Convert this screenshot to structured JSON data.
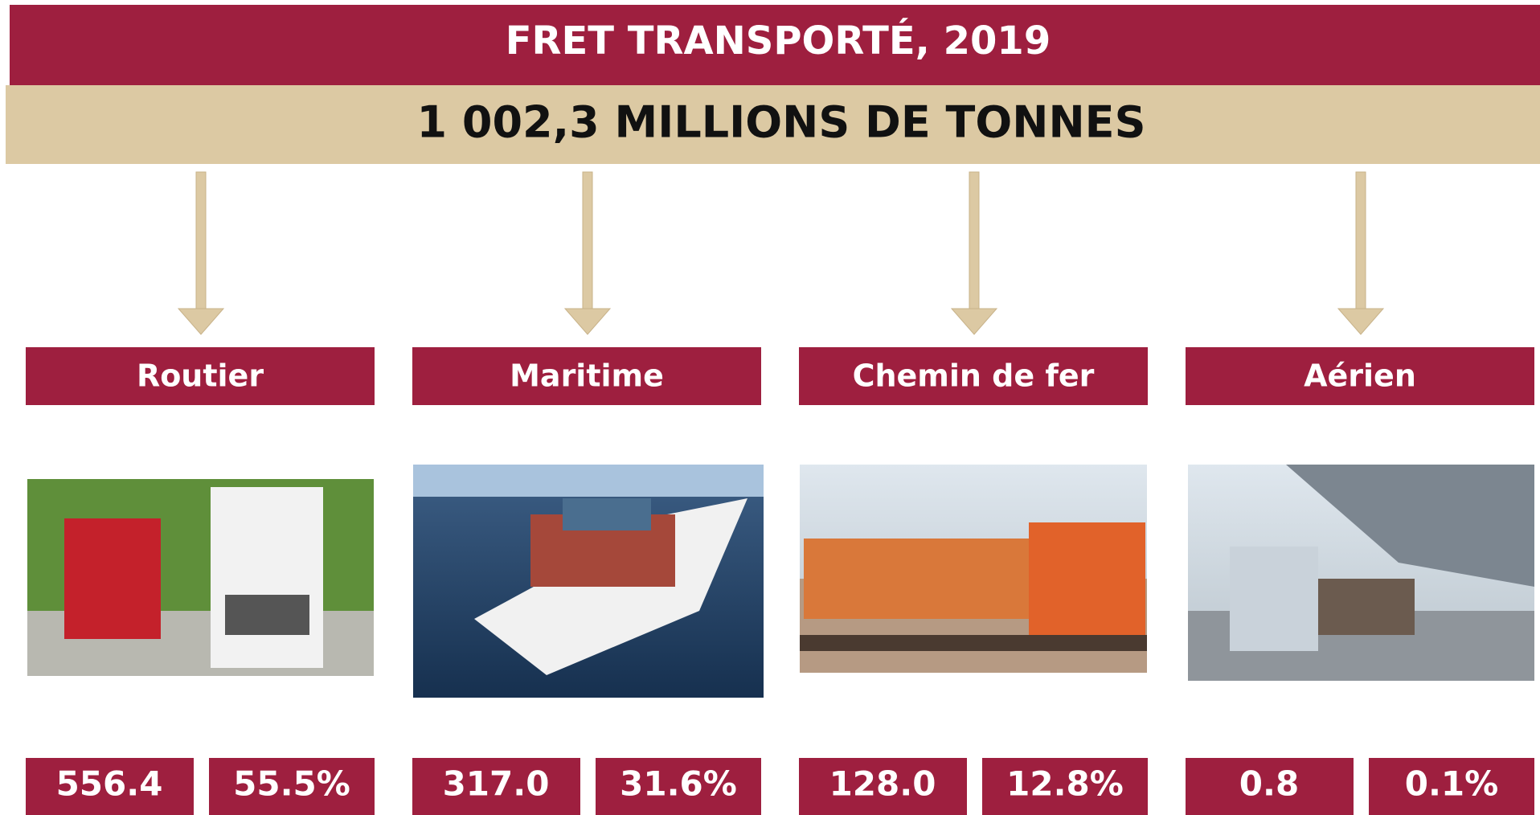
{
  "header": {
    "title": "FRET TRANSPORTÉ, 2019",
    "subtitle": "1 002,3 MILLIONS DE TONNES"
  },
  "modes": [
    {
      "label": "Routier",
      "value": "556.4",
      "share": "55.5%"
    },
    {
      "label": "Maritime",
      "value": "317.0",
      "share": "31.6%"
    },
    {
      "label": "Chemin de fer",
      "value": "128.0",
      "share": "12.8%"
    },
    {
      "label": "Aérien",
      "value": "0.8",
      "share": "0.1%"
    }
  ]
}
